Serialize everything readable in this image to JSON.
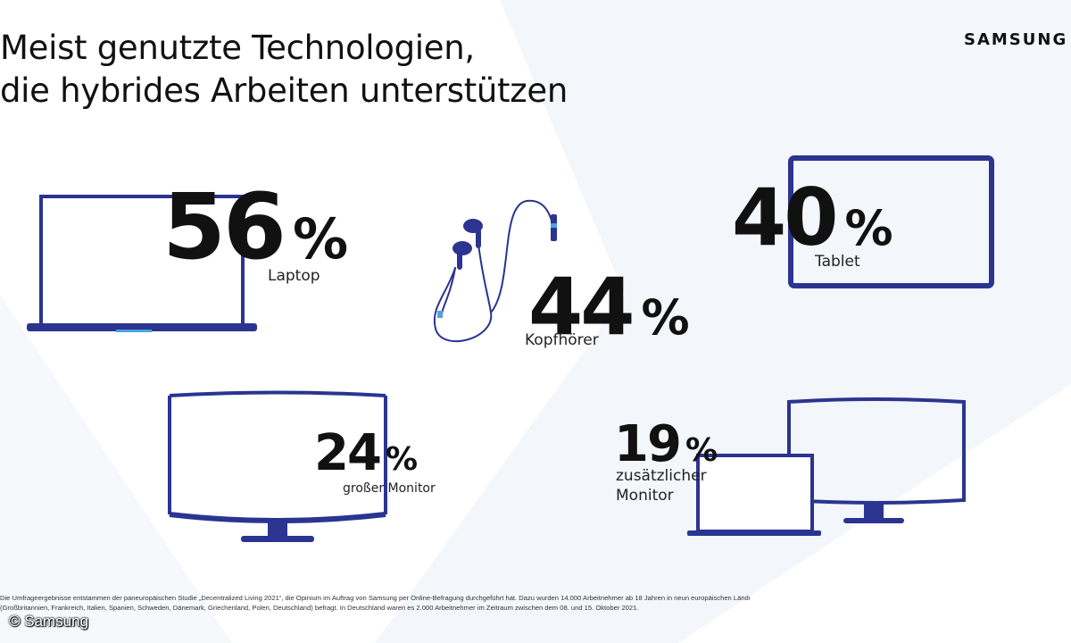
{
  "title": {
    "line1": "Meist genutzte Technologien,",
    "line2": "die hybrides Arbeiten unterstützen"
  },
  "brand": "SAMSUNG",
  "colors": {
    "accent": "#2b3490",
    "cable_highlight": "#4aa3e0",
    "text": "#111111"
  },
  "chart_data": {
    "type": "infographic-percentages",
    "items": [
      {
        "label": "Laptop",
        "value": 56,
        "unit": "%",
        "icon": "laptop-icon"
      },
      {
        "label": "Kopfhörer",
        "value": 44,
        "unit": "%",
        "icon": "earphones-icon"
      },
      {
        "label": "Tablet",
        "value": 40,
        "unit": "%",
        "icon": "tablet-icon"
      },
      {
        "label": "großer Monitor",
        "value": 24,
        "unit": "%",
        "icon": "curved-monitor-icon"
      },
      {
        "label_line1": "zusätzlicher",
        "label_line2": "Monitor",
        "value": 19,
        "unit": "%",
        "icon": "laptop-with-monitor-icon"
      }
    ]
  },
  "footnote": {
    "line1": "Die Umfrageergebnisse entstammen der paneuropäischen Studie „Decentralized Living 2021“, die Opinium im Auftrag von Samsung per Online-Befragung durchgeführt hat. Dazu wurden 14.000 Arbeitnehmer ab 18 Jahren in neun europäischen Ländern",
    "line2": "(Großbritannien, Frankreich, Italien, Spanien, Schweden, Dänemark, Griechenland, Polen, Deutschland) befragt. In Deutschland waren es 2.000 Arbeitnehmer im Zeitraum zwischen dem 08. und 15. Oktober 2021."
  },
  "copyright": "© Samsung"
}
